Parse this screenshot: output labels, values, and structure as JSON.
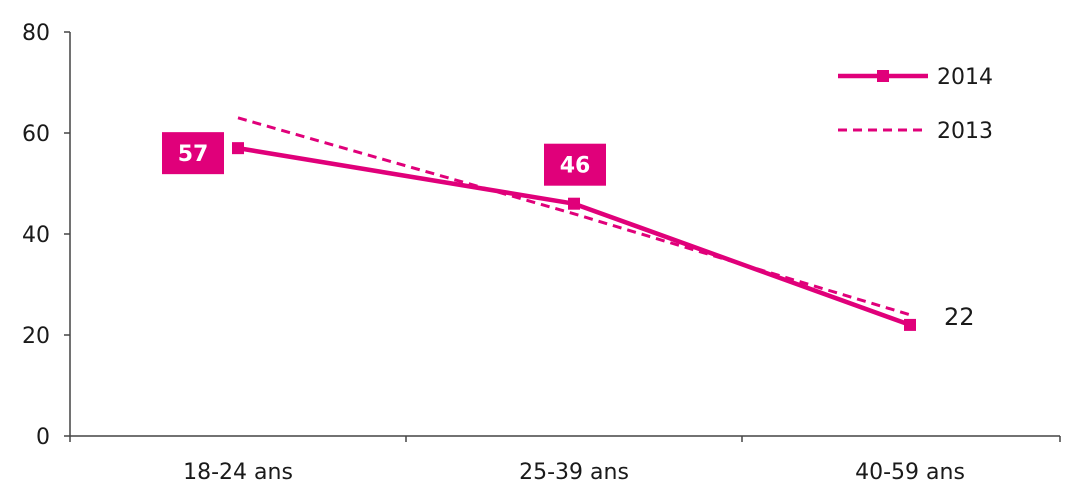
{
  "chart_data": {
    "type": "line",
    "categories": [
      "18-24 ans",
      "25-39 ans",
      "40-59 ans"
    ],
    "ylim": [
      0,
      80
    ],
    "yticks": [
      0,
      20,
      40,
      60,
      80
    ],
    "grid": false,
    "legend_position": "top-right",
    "series": [
      {
        "name": "2014",
        "values": [
          57,
          46,
          22
        ],
        "color": "#e0007a",
        "style": "solid",
        "marker": "square",
        "labels": [
          {
            "index": 0,
            "text": "57",
            "style": "badge"
          },
          {
            "index": 1,
            "text": "46",
            "style": "badge"
          },
          {
            "index": 2,
            "text": "22",
            "style": "plain"
          }
        ]
      },
      {
        "name": "2013",
        "values": [
          63,
          44,
          24
        ],
        "color": "#e0007a",
        "style": "dashed",
        "marker": "none"
      }
    ]
  }
}
